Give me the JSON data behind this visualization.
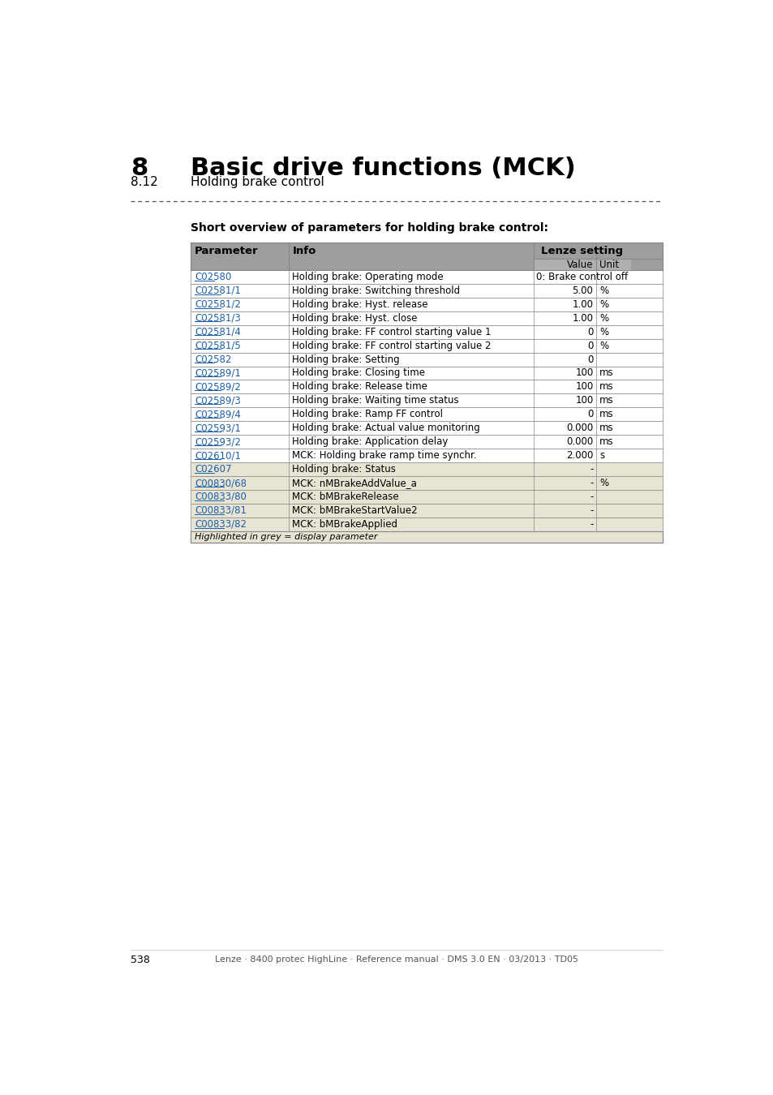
{
  "page_title_number": "8",
  "page_title_text": "Basic drive functions (MCK)",
  "page_subtitle_number": "8.12",
  "page_subtitle_text": "Holding brake control",
  "section_title": "Short overview of parameters for holding brake control:",
  "table_header": [
    "Parameter",
    "Info",
    "Lenze setting"
  ],
  "rows": [
    {
      "param": "C02580",
      "info": "Holding brake: Operating mode",
      "value": "0: Brake control off",
      "unit": "",
      "grey": false,
      "span": true
    },
    {
      "param": "C02581/1",
      "info": "Holding brake: Switching threshold",
      "value": "5.00",
      "unit": "%",
      "grey": false,
      "span": false
    },
    {
      "param": "C02581/2",
      "info": "Holding brake: Hyst. release",
      "value": "1.00",
      "unit": "%",
      "grey": false,
      "span": false
    },
    {
      "param": "C02581/3",
      "info": "Holding brake: Hyst. close",
      "value": "1.00",
      "unit": "%",
      "grey": false,
      "span": false
    },
    {
      "param": "C02581/4",
      "info": "Holding brake: FF control starting value 1",
      "value": "0",
      "unit": "%",
      "grey": false,
      "span": false
    },
    {
      "param": "C02581/5",
      "info": "Holding brake: FF control starting value 2",
      "value": "0",
      "unit": "%",
      "grey": false,
      "span": false
    },
    {
      "param": "C02582",
      "info": "Holding brake: Setting",
      "value": "0",
      "unit": "",
      "grey": false,
      "span": false
    },
    {
      "param": "C02589/1",
      "info": "Holding brake: Closing time",
      "value": "100",
      "unit": "ms",
      "grey": false,
      "span": false
    },
    {
      "param": "C02589/2",
      "info": "Holding brake: Release time",
      "value": "100",
      "unit": "ms",
      "grey": false,
      "span": false
    },
    {
      "param": "C02589/3",
      "info": "Holding brake: Waiting time status",
      "value": "100",
      "unit": "ms",
      "grey": false,
      "span": false
    },
    {
      "param": "C02589/4",
      "info": "Holding brake: Ramp FF control",
      "value": "0",
      "unit": "ms",
      "grey": false,
      "span": false
    },
    {
      "param": "C02593/1",
      "info": "Holding brake: Actual value monitoring",
      "value": "0.000",
      "unit": "ms",
      "grey": false,
      "span": false
    },
    {
      "param": "C02593/2",
      "info": "Holding brake: Application delay",
      "value": "0.000",
      "unit": "ms",
      "grey": false,
      "span": false
    },
    {
      "param": "C02610/1",
      "info": "MCK: Holding brake ramp time synchr.",
      "value": "2.000",
      "unit": "s",
      "grey": false,
      "span": false
    },
    {
      "param": "C02607",
      "info": "Holding brake: Status",
      "value": "-",
      "unit": "",
      "grey": true,
      "span": false
    },
    {
      "param": "C00830/68",
      "info": "MCK: nMBrakeAddValue_a",
      "value": "-",
      "unit": "%",
      "grey": true,
      "span": false
    },
    {
      "param": "C00833/80",
      "info": "MCK: bMBrakeRelease",
      "value": "-",
      "unit": "",
      "grey": true,
      "span": false
    },
    {
      "param": "C00833/81",
      "info": "MCK: bMBrakeStartValue2",
      "value": "-",
      "unit": "",
      "grey": true,
      "span": false
    },
    {
      "param": "C00833/82",
      "info": "MCK: bMBrakeApplied",
      "value": "-",
      "unit": "",
      "grey": true,
      "span": false
    }
  ],
  "footer_note": "Highlighted in grey = display parameter",
  "page_number": "538",
  "footer_text": "Lenze · 8400 protec HighLine · Reference manual · DMS 3.0 EN · 03/2013 · TD05",
  "bg_color": "#ffffff",
  "header_bg": "#9e9e9e",
  "subheader_bg": "#b0b0b0",
  "row_bg_white": "#ffffff",
  "row_bg_grey": "#e8e4d4",
  "note_bg": "#e8e4d4",
  "link_color": "#1a5fa8",
  "text_color": "#000000",
  "border_color": "#888888",
  "title_font_size": 22,
  "subtitle_font_size": 11,
  "table_font_size": 8.5
}
